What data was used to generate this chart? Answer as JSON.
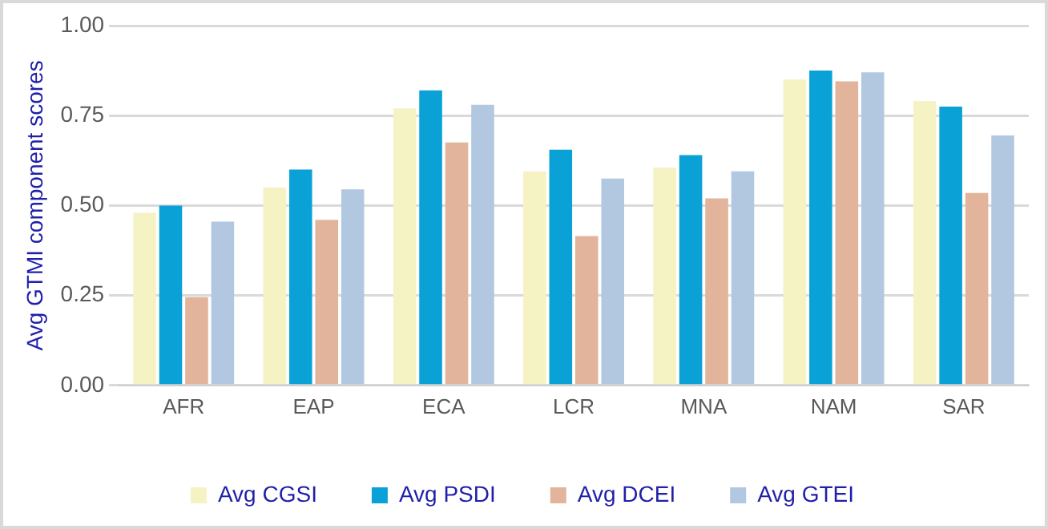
{
  "chart_data": {
    "type": "bar",
    "ylabel": "Avg GTMI component scores",
    "categories": [
      "AFR",
      "EAP",
      "ECA",
      "LCR",
      "MNA",
      "NAM",
      "SAR"
    ],
    "series": [
      {
        "name": "Avg CGSI",
        "color": "#f5f2c4",
        "values": [
          0.48,
          0.55,
          0.77,
          0.595,
          0.605,
          0.85,
          0.79
        ]
      },
      {
        "name": "Avg PSDI",
        "color": "#0aa2d6",
        "values": [
          0.5,
          0.6,
          0.82,
          0.655,
          0.64,
          0.875,
          0.775
        ]
      },
      {
        "name": "Avg DCEI",
        "color": "#e2b49c",
        "values": [
          0.245,
          0.46,
          0.675,
          0.415,
          0.52,
          0.845,
          0.535
        ]
      },
      {
        "name": "Avg GTEI",
        "color": "#b2c8e0",
        "values": [
          0.455,
          0.545,
          0.78,
          0.575,
          0.595,
          0.87,
          0.695
        ]
      }
    ],
    "ylim": [
      0,
      1
    ],
    "yticks": [
      {
        "value": 0,
        "label": "0.00"
      },
      {
        "value": 0.25,
        "label": "0.25"
      },
      {
        "value": 0.5,
        "label": "0.50"
      },
      {
        "value": 0.75,
        "label": "0.75"
      },
      {
        "value": 1,
        "label": "1.00"
      }
    ],
    "grid": "y",
    "legend": "bottom"
  }
}
